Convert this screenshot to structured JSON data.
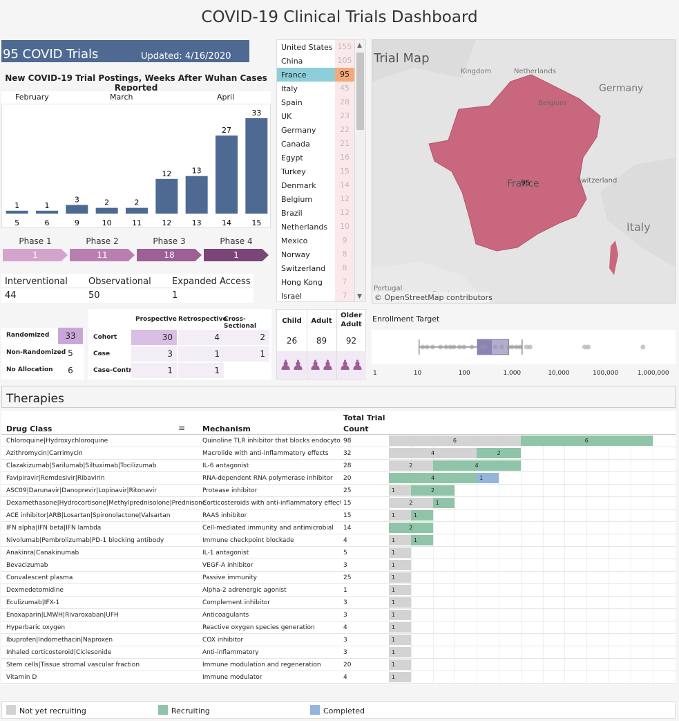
{
  "title": "COVID-19 Clinical Trials Dashboard",
  "banner": {
    "count_label": "95 COVID Trials",
    "updated": "Updated: 4/16/2020"
  },
  "postings": {
    "title": "New COVID-19 Trial Postings, Weeks After Wuhan Cases Reported",
    "months": [
      "February",
      "March",
      "April"
    ]
  },
  "chart_data": {
    "type": "bar",
    "categories": [
      "5",
      "6",
      "9",
      "10",
      "11",
      "12",
      "13",
      "14",
      "15"
    ],
    "values": [
      1,
      1,
      3,
      2,
      2,
      12,
      13,
      27,
      33
    ],
    "title": "New COVID-19 Trial Postings, Weeks After Wuhan Cases Reported",
    "color": "#4e6a93"
  },
  "phases": [
    {
      "label": "Phase 1",
      "value": "1",
      "color": "#d5a4cd"
    },
    {
      "label": "Phase 2",
      "value": "11",
      "color": "#b97fb0"
    },
    {
      "label": "Phase 3",
      "value": "18",
      "color": "#9e5f96"
    },
    {
      "label": "Phase 4",
      "value": "1",
      "color": "#7a4577"
    }
  ],
  "study_types": [
    {
      "label": "Interventional",
      "value": "44"
    },
    {
      "label": "Observational",
      "value": "50"
    },
    {
      "label": "Expanded Access",
      "value": "1"
    }
  ],
  "countries": [
    {
      "name": "United States",
      "count": "155"
    },
    {
      "name": "China",
      "count": "105"
    },
    {
      "name": "France",
      "count": "95"
    },
    {
      "name": "Italy",
      "count": "45"
    },
    {
      "name": "Spain",
      "count": "28"
    },
    {
      "name": "UK",
      "count": "23"
    },
    {
      "name": "Germany",
      "count": "22"
    },
    {
      "name": "Canada",
      "count": "21"
    },
    {
      "name": "Egypt",
      "count": "16"
    },
    {
      "name": "Turkey",
      "count": "15"
    },
    {
      "name": "Denmark",
      "count": "14"
    },
    {
      "name": "Belgium",
      "count": "12"
    },
    {
      "name": "Brazil",
      "count": "12"
    },
    {
      "name": "Netherlands",
      "count": "10"
    },
    {
      "name": "Mexico",
      "count": "9"
    },
    {
      "name": "Norway",
      "count": "8"
    },
    {
      "name": "Switzerland",
      "count": "8"
    },
    {
      "name": "Hong Kong",
      "count": "7"
    },
    {
      "name": "Israel",
      "count": "7"
    }
  ],
  "selected_country": "France",
  "map": {
    "title": "Trial Map",
    "credit": "© OpenStreetMap contributors",
    "labels": [
      "Kingdom",
      "Netherlands",
      "Germany",
      "Belgium",
      "Switzerland",
      "Italy",
      "Portugal",
      "Spain"
    ],
    "country_label": "France",
    "country_value": "95",
    "fill": "#c9677f"
  },
  "allocation": [
    {
      "label": "Randomized",
      "value": "33"
    },
    {
      "label": "Non-Randomized",
      "value": "5"
    },
    {
      "label": "No Allocation",
      "value": "6"
    }
  ],
  "design": {
    "columns": [
      "Prospective",
      "Retrospective",
      "Cross-Sectional"
    ],
    "rows": [
      {
        "label": "Cohort",
        "values": [
          "30",
          "4",
          "2"
        ]
      },
      {
        "label": "Case",
        "values": [
          "3",
          "1",
          "1"
        ]
      },
      {
        "label": "Case-Control",
        "values": [
          "1",
          "1",
          ""
        ]
      }
    ]
  },
  "ages": [
    {
      "label": "Child",
      "value": "26"
    },
    {
      "label": "Adult",
      "value": "89"
    },
    {
      "label": "Older Adult",
      "value": "92"
    }
  ],
  "enrollment": {
    "title": "Enrollment Target",
    "ticks": [
      "1",
      "10",
      "100",
      "1,000",
      "10,000",
      "100,000",
      "1,000,000"
    ],
    "scale": "log"
  },
  "therapies": {
    "title": "Therapies",
    "headers": [
      "Drug Class",
      "Mechanism",
      "Total Trial Count"
    ],
    "rows": [
      {
        "drug": "Chloroquine|Hydroxychloroquine",
        "mech": "Quinoline TLR inhibitor that blocks endocytos..",
        "count": "98",
        "segs": [
          {
            "s": "nyr",
            "v": 6
          },
          {
            "s": "rec",
            "v": 6
          }
        ]
      },
      {
        "drug": "Azithromycin|Carrimycin",
        "mech": "Macrolide with anti-inflammatory effects",
        "count": "32",
        "segs": [
          {
            "s": "nyr",
            "v": 4
          },
          {
            "s": "rec",
            "v": 2
          }
        ]
      },
      {
        "drug": "Clazakizumab|Sarilumab|Siltuximab|Tocilizumab",
        "mech": "IL-6 antagonist",
        "count": "28",
        "segs": [
          {
            "s": "nyr",
            "v": 2
          },
          {
            "s": "rec",
            "v": 4
          }
        ]
      },
      {
        "drug": "Favipiravir|Remdesivir|Ribavirin",
        "mech": "RNA-dependent RNA polymerase inhibitor",
        "count": "20",
        "segs": [
          {
            "s": "rec",
            "v": 4
          },
          {
            "s": "com",
            "v": 1
          }
        ]
      },
      {
        "drug": "ASC09|Darunavir|Danoprevir|Lopinavir|Ritonavir",
        "mech": "Protease inhibitor",
        "count": "25",
        "segs": [
          {
            "s": "nyr",
            "v": 1
          },
          {
            "s": "rec",
            "v": 2
          }
        ]
      },
      {
        "drug": "Dexamethasone|Hydrocortisone|Methylprednisolone|Prednisone",
        "mech": "Corticosteroids with anti-inflammatory effects",
        "count": "15",
        "segs": [
          {
            "s": "nyr",
            "v": 2
          },
          {
            "s": "rec",
            "v": 1
          }
        ]
      },
      {
        "drug": "ACE inhibitor|ARB|Losartan|Spironolactone|Valsartan",
        "mech": "RAAS inhibitor",
        "count": "15",
        "segs": [
          {
            "s": "nyr",
            "v": 1
          },
          {
            "s": "rec",
            "v": 1
          }
        ]
      },
      {
        "drug": "IFN alpha|IFN beta|IFN lambda",
        "mech": "Cell-mediated immunity and antimicrobial",
        "count": "14",
        "segs": [
          {
            "s": "rec",
            "v": 2
          }
        ]
      },
      {
        "drug": "Nivolumab|Pembrolizumab|PD-1 blocking antibody",
        "mech": "Immune checkpoint blockade",
        "count": "4",
        "segs": [
          {
            "s": "nyr",
            "v": 1
          },
          {
            "s": "rec",
            "v": 1
          }
        ]
      },
      {
        "drug": "Anakinra|Canakinumab",
        "mech": "IL-1 antagonist",
        "count": "5",
        "segs": [
          {
            "s": "nyr",
            "v": 1
          }
        ]
      },
      {
        "drug": "Bevacizumab",
        "mech": "VEGF-A inhibitor",
        "count": "3",
        "segs": [
          {
            "s": "nyr",
            "v": 1
          }
        ]
      },
      {
        "drug": "Convalescent plasma",
        "mech": "Passive immunity",
        "count": "25",
        "segs": [
          {
            "s": "nyr",
            "v": 1
          }
        ]
      },
      {
        "drug": "Dexmedetomidine",
        "mech": "Alpha-2 adrenergic agonist",
        "count": "1",
        "segs": [
          {
            "s": "nyr",
            "v": 1
          }
        ]
      },
      {
        "drug": "Eculizumab|IFX-1",
        "mech": "Complement inhibitor",
        "count": "3",
        "segs": [
          {
            "s": "nyr",
            "v": 1
          }
        ]
      },
      {
        "drug": "Enoxaparin|LMWH|Rivaroxaban|UFH",
        "mech": "Anticoagulants",
        "count": "3",
        "segs": [
          {
            "s": "nyr",
            "v": 1
          }
        ]
      },
      {
        "drug": "Hyperbaric oxygen",
        "mech": "Reactive oxygen species generation",
        "count": "4",
        "segs": [
          {
            "s": "nyr",
            "v": 1
          }
        ]
      },
      {
        "drug": "Ibuprofen|Indomethacin|Naproxen",
        "mech": "COX inhibitor",
        "count": "3",
        "segs": [
          {
            "s": "nyr",
            "v": 1
          }
        ]
      },
      {
        "drug": "Inhaled corticosteroid|Ciclesonide",
        "mech": "Anti-inflammatory",
        "count": "3",
        "segs": [
          {
            "s": "nyr",
            "v": 1
          }
        ]
      },
      {
        "drug": "Stem cells|Tissue stromal vascular fraction",
        "mech": "Immune modulation and regeneration",
        "count": "20",
        "segs": [
          {
            "s": "nyr",
            "v": 1
          }
        ]
      },
      {
        "drug": "Vitamin D",
        "mech": "Immune modulator",
        "count": "4",
        "segs": [
          {
            "s": "nyr",
            "v": 1
          }
        ]
      }
    ]
  },
  "legend": [
    {
      "label": "Not yet recruiting",
      "color": "#d3d3d3"
    },
    {
      "label": "Recruiting",
      "color": "#8fc4a8"
    },
    {
      "label": "Completed",
      "color": "#94b4dc"
    }
  ]
}
